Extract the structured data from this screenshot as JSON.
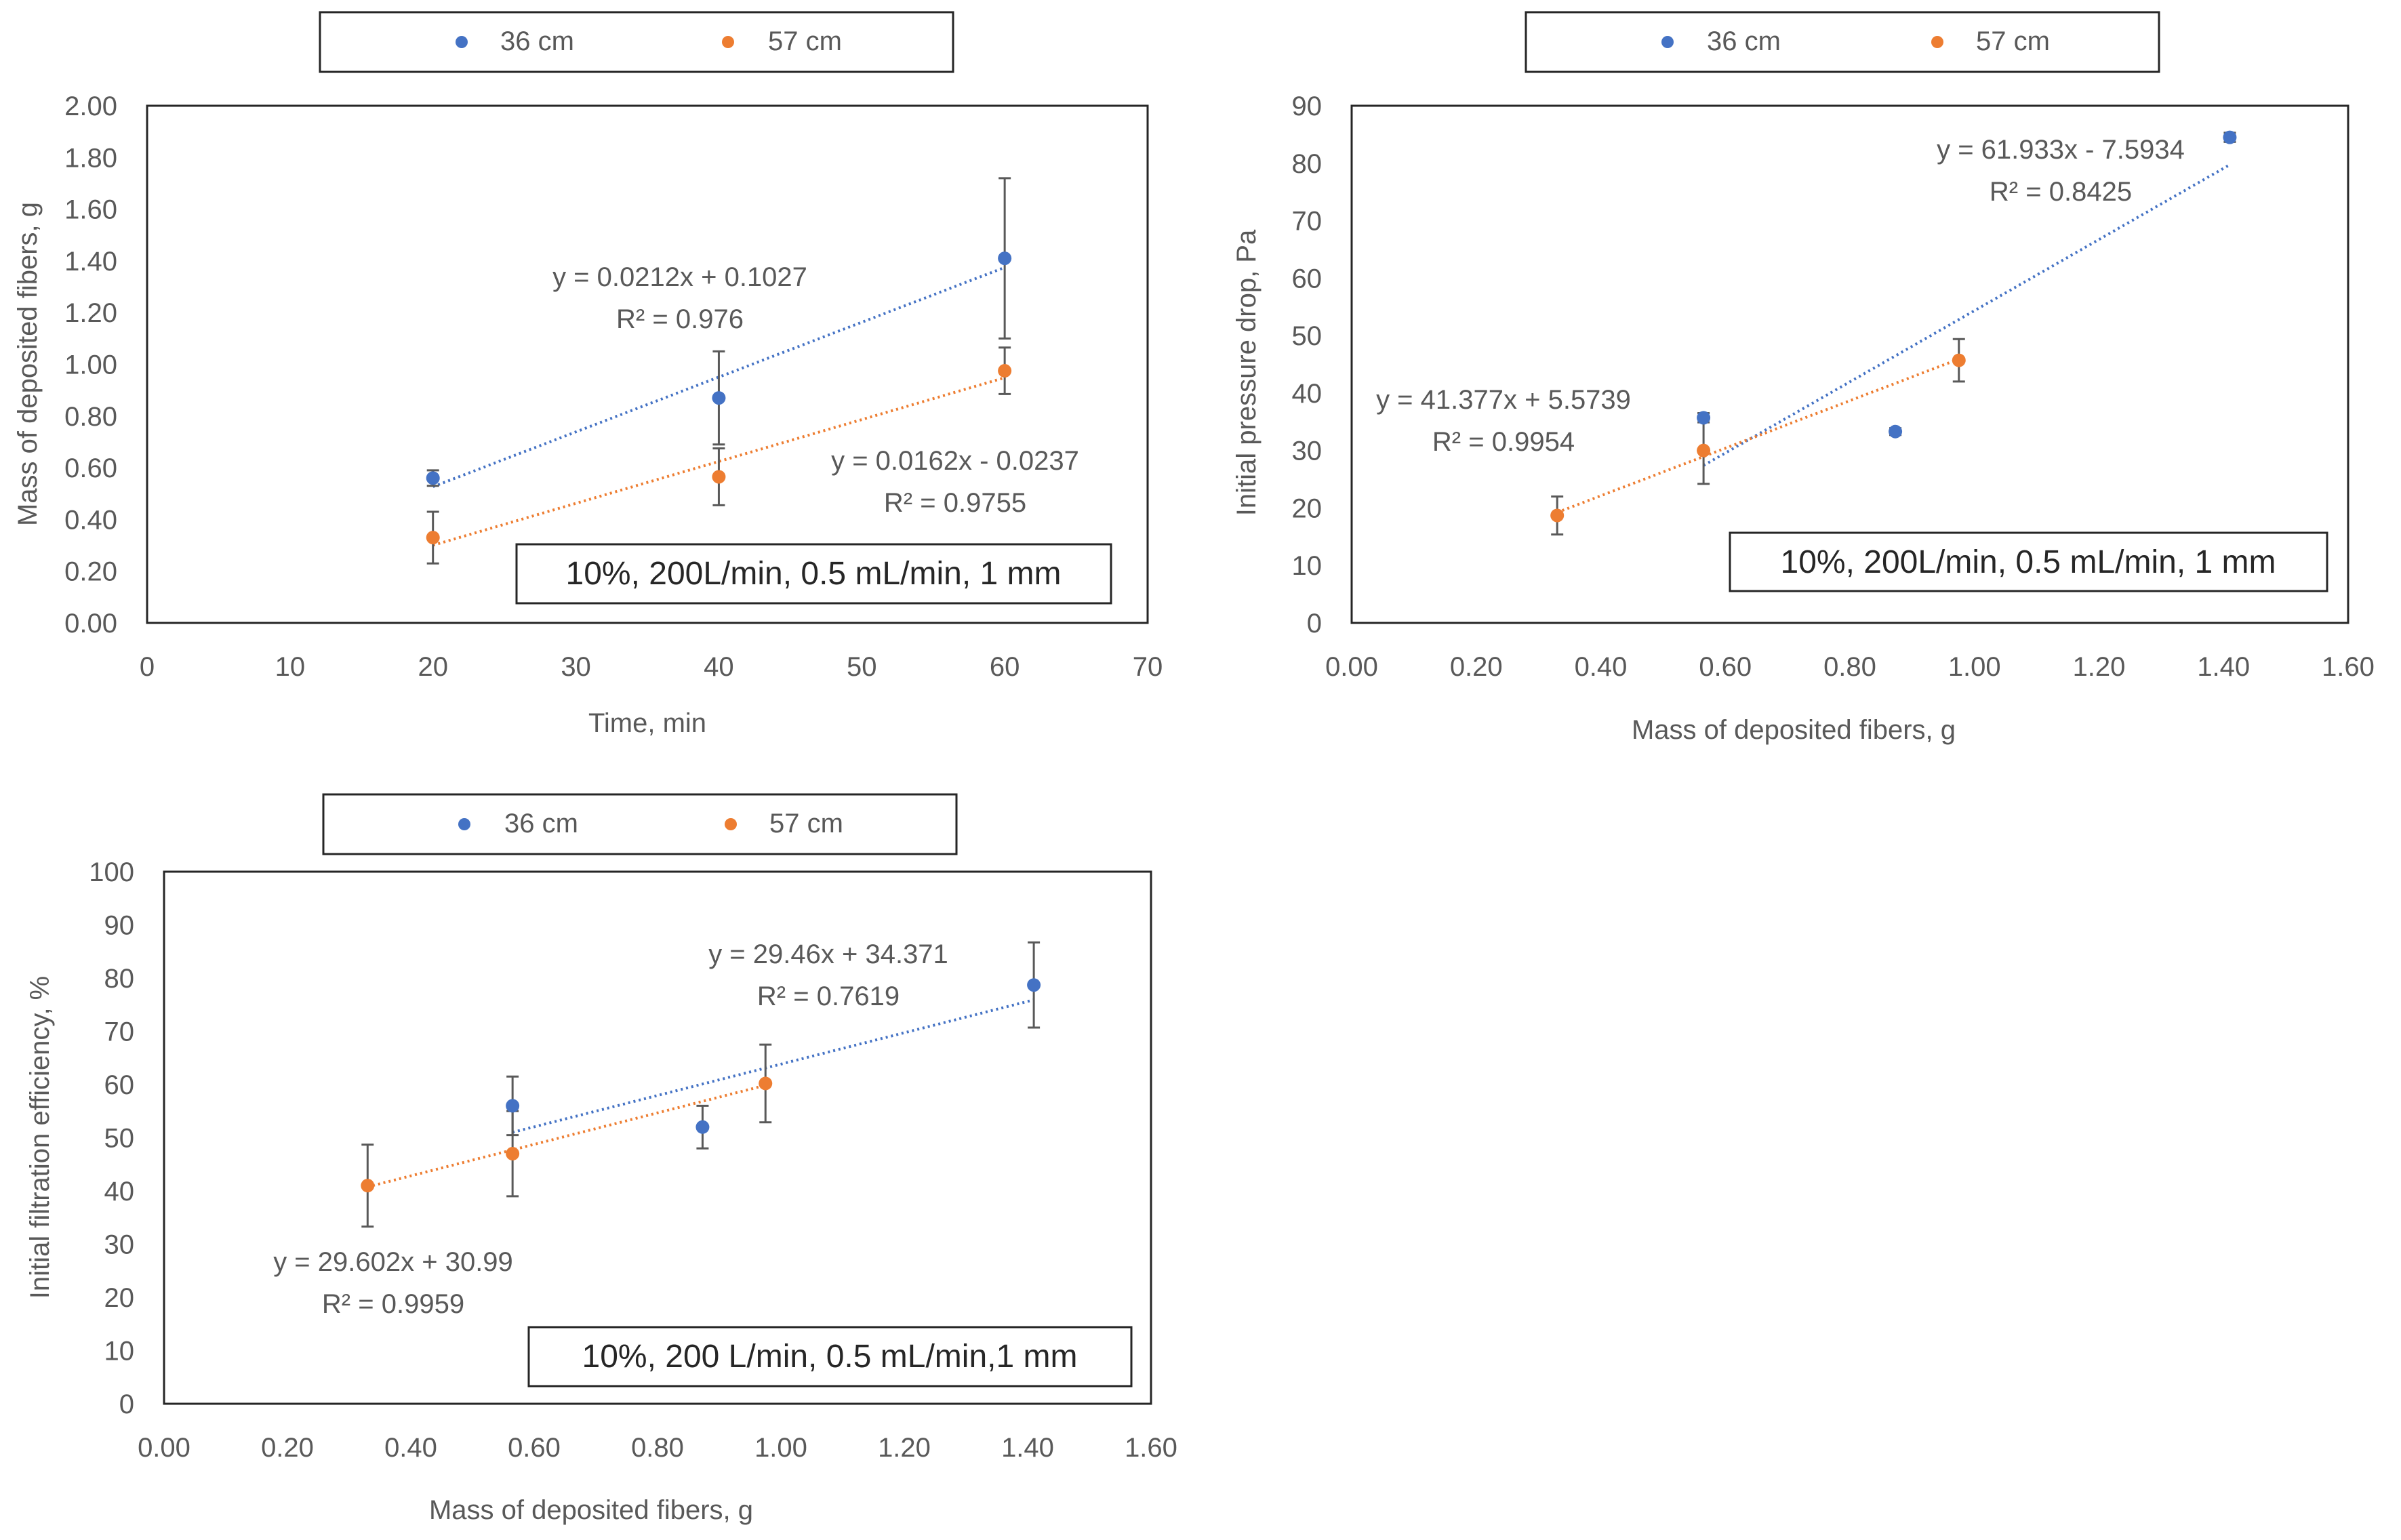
{
  "colors": {
    "series1": "#4472C4",
    "series2": "#ED7D31",
    "axis": "#595959",
    "text": "#595959",
    "errorbar": "#595959"
  },
  "chart_data": [
    {
      "type": "scatter",
      "title": "",
      "xlabel": "Time, min",
      "ylabel": "Mass of deposited fibers, g",
      "xlim": [
        0,
        70
      ],
      "ylim": [
        0,
        2
      ],
      "xticks": [
        "0",
        "10",
        "20",
        "30",
        "40",
        "50",
        "60",
        "70"
      ],
      "yticks": [
        "0.00",
        "0.20",
        "0.40",
        "0.60",
        "0.80",
        "1.00",
        "1.20",
        "1.40",
        "1.60",
        "1.80",
        "2.00"
      ],
      "legend": [
        "36 cm",
        "57 cm"
      ],
      "legend_position": "top",
      "annotation": "10%, 200L/min, 0.5 mL/min, 1 mm",
      "series": [
        {
          "name": "36 cm",
          "points": [
            {
              "x": 20,
              "y": 0.56,
              "err": 0.03
            },
            {
              "x": 40,
              "y": 0.87,
              "err": 0.18
            },
            {
              "x": 60,
              "y": 1.41,
              "err": 0.31
            }
          ],
          "trendline": {
            "slope": 0.0212,
            "intercept": 0.1027,
            "x_from": 20,
            "x_to": 60
          },
          "equation": "y = 0.0212x + 0.1027",
          "r2": "R² = 0.976"
        },
        {
          "name": "57 cm",
          "points": [
            {
              "x": 20,
              "y": 0.33,
              "err": 0.1
            },
            {
              "x": 40,
              "y": 0.565,
              "err": 0.11
            },
            {
              "x": 60,
              "y": 0.975,
              "err": 0.09
            }
          ],
          "trendline": {
            "slope": 0.0162,
            "intercept": -0.0237,
            "x_from": 20,
            "x_to": 60
          },
          "equation": "y = 0.0162x - 0.0237",
          "r2": "R² = 0.9755"
        }
      ]
    },
    {
      "type": "scatter",
      "title": "",
      "xlabel": "Mass of deposited fibers, g",
      "ylabel": "Initial pressure drop, Pa",
      "xlim": [
        0,
        1.6
      ],
      "ylim": [
        0,
        90
      ],
      "xticks": [
        "0.00",
        "0.20",
        "0.40",
        "0.60",
        "0.80",
        "1.00",
        "1.20",
        "1.40",
        "1.60"
      ],
      "yticks": [
        "0",
        "10",
        "20",
        "30",
        "40",
        "50",
        "60",
        "70",
        "80",
        "90"
      ],
      "legend": [
        "36 cm",
        "57 cm"
      ],
      "legend_position": "top",
      "annotation": "10%, 200L/min, 0.5 mL/min, 1 mm",
      "series": [
        {
          "name": "36 cm",
          "points": [
            {
              "x": 0.565,
              "y": 35.7,
              "err": 0.8
            },
            {
              "x": 0.873,
              "y": 33.3,
              "err": 0.6
            },
            {
              "x": 1.41,
              "y": 84.5,
              "err": 0.8
            }
          ],
          "trendline": {
            "slope": 61.933,
            "intercept": -7.5934,
            "x_from": 0.565,
            "x_to": 1.41
          },
          "equation": "y = 61.933x - 7.5934",
          "r2": "R² = 0.8425"
        },
        {
          "name": "57 cm",
          "points": [
            {
              "x": 0.33,
              "y": 18.7,
              "err": 3.3
            },
            {
              "x": 0.565,
              "y": 30,
              "err": 5.8
            },
            {
              "x": 0.975,
              "y": 45.7,
              "err": 3.7
            }
          ],
          "trendline": {
            "slope": 41.377,
            "intercept": 5.5739,
            "x_from": 0.33,
            "x_to": 0.975
          },
          "equation": "y = 41.377x + 5.5739",
          "r2": "R² = 0.9954"
        }
      ]
    },
    {
      "type": "scatter",
      "title": "",
      "xlabel": "Mass of deposited fibers, g",
      "ylabel": "Initial filtration efficiency, %",
      "xlim": [
        0,
        1.6
      ],
      "ylim": [
        0,
        100
      ],
      "xticks": [
        "0.00",
        "0.20",
        "0.40",
        "0.60",
        "0.80",
        "1.00",
        "1.20",
        "1.40",
        "1.60"
      ],
      "yticks": [
        "0",
        "10",
        "20",
        "30",
        "40",
        "50",
        "60",
        "70",
        "80",
        "90",
        "100"
      ],
      "legend": [
        "36 cm",
        "57 cm"
      ],
      "legend_position": "top",
      "annotation": "10%, 200 L/min, 0.5 mL/min,1 mm",
      "series": [
        {
          "name": "36 cm",
          "points": [
            {
              "x": 0.565,
              "y": 56,
              "err": 5.5
            },
            {
              "x": 0.873,
              "y": 52,
              "err": 4
            },
            {
              "x": 1.41,
              "y": 78.7,
              "err": 8
            }
          ],
          "trendline": {
            "slope": 29.46,
            "intercept": 34.371,
            "x_from": 0.565,
            "x_to": 1.41
          },
          "equation": "y = 29.46x + 34.371",
          "r2": "R² = 0.7619"
        },
        {
          "name": "57 cm",
          "points": [
            {
              "x": 0.33,
              "y": 41,
              "err": 7.7
            },
            {
              "x": 0.565,
              "y": 47,
              "err": 8
            },
            {
              "x": 0.975,
              "y": 60.2,
              "err": 7.3
            }
          ],
          "trendline": {
            "slope": 29.602,
            "intercept": 30.99,
            "x_from": 0.33,
            "x_to": 0.975
          },
          "equation": "y = 29.602x + 30.99",
          "r2": "R² = 0.9959"
        }
      ]
    }
  ]
}
